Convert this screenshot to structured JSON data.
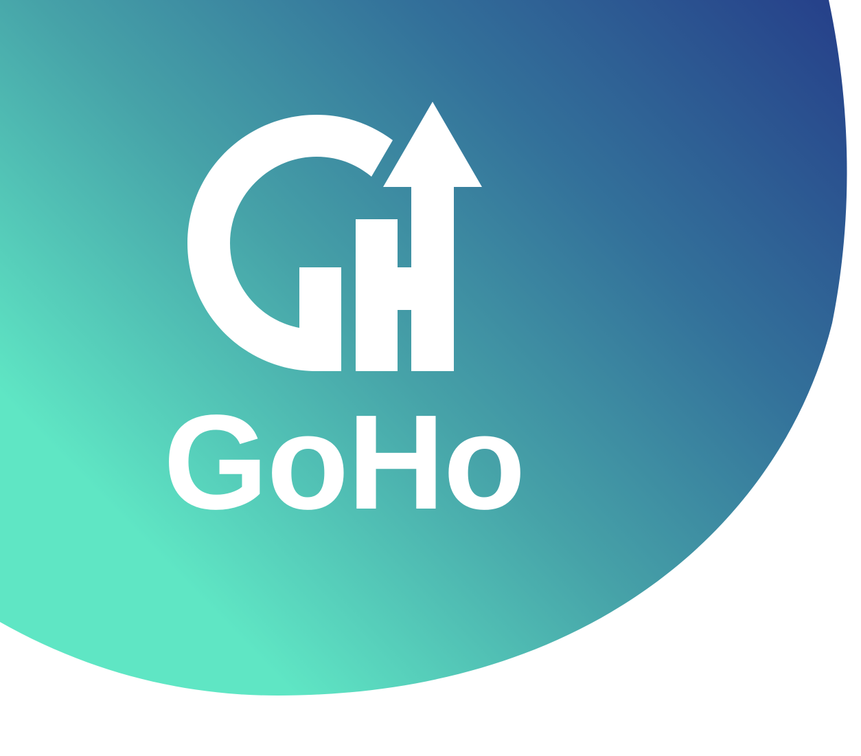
{
  "brand": {
    "name": "GoHo",
    "logo_icon": "gh-monogram-with-up-arrow-icon"
  },
  "colors": {
    "gradient_dark": "#26418A",
    "gradient_mid": "#3A7F9F",
    "gradient_light": "#5FE6C4",
    "logo": "#FFFFFF",
    "background": "#FFFFFF"
  }
}
